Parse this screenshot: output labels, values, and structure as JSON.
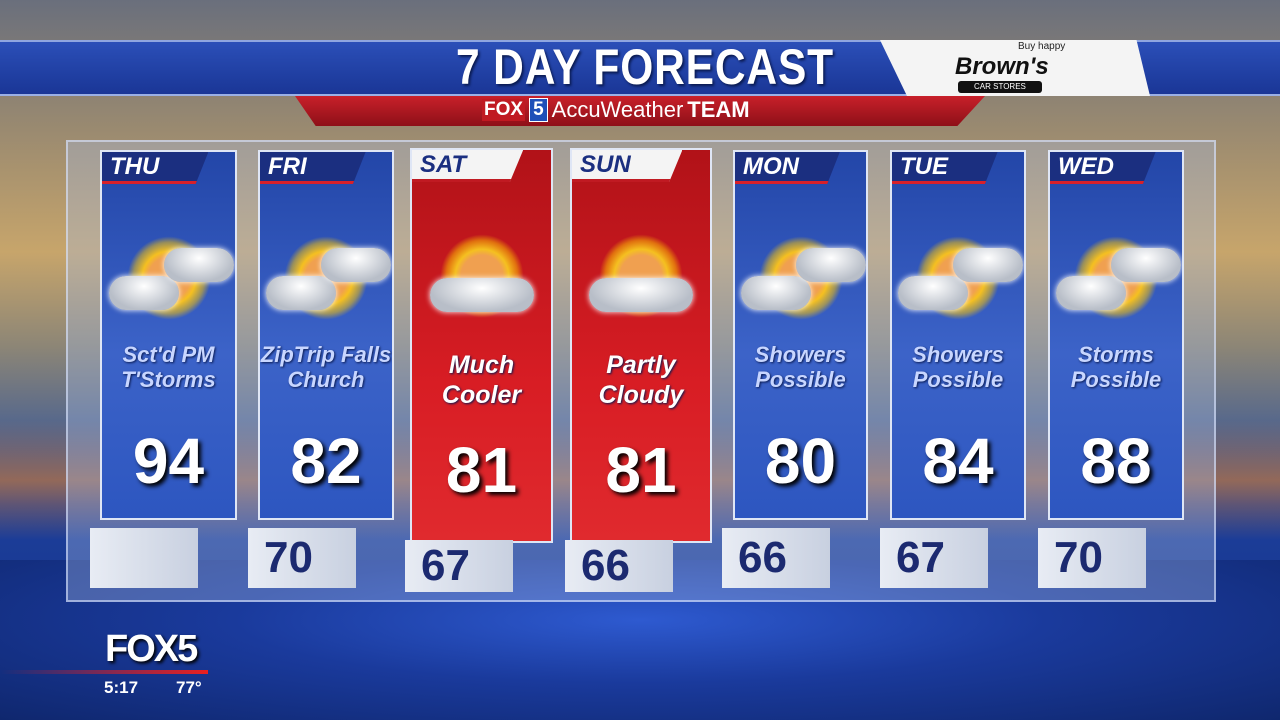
{
  "header": {
    "title": "7 DAY FORECAST",
    "brand_fox": "FOX",
    "brand_5": "5",
    "brand_accu": "AccuWeather",
    "brand_team": "TEAM"
  },
  "sponsor": {
    "tagline": "Buy happy",
    "logo": "Brown's",
    "sub": "CAR STORES"
  },
  "days": [
    {
      "day": "THU",
      "desc": "Sct'd PM T'Storms",
      "high": "94",
      "low": "",
      "icon": "sun-cloud-storm-icon",
      "highlight": false
    },
    {
      "day": "FRI",
      "desc": "ZipTrip Falls Church",
      "high": "82",
      "low": "70",
      "icon": "sun-cloud-showers-icon",
      "highlight": false
    },
    {
      "day": "SAT",
      "desc": "Much Cooler",
      "high": "81",
      "low": "67",
      "icon": "partly-cloudy-icon",
      "highlight": true
    },
    {
      "day": "SUN",
      "desc": "Partly Cloudy",
      "high": "81",
      "low": "66",
      "icon": "partly-cloudy-icon",
      "highlight": true
    },
    {
      "day": "MON",
      "desc": "Showers Possible",
      "high": "80",
      "low": "66",
      "icon": "sun-cloud-showers-icon",
      "highlight": false
    },
    {
      "day": "TUE",
      "desc": "Showers Possible",
      "high": "84",
      "low": "67",
      "icon": "sun-cloud-showers-icon",
      "highlight": false
    },
    {
      "day": "WED",
      "desc": "Storms Possible",
      "high": "88",
      "low": "70",
      "icon": "sun-cloud-storm-icon",
      "highlight": false
    }
  ],
  "bug": {
    "logo": "FOX5",
    "time": "5:17",
    "temp": "77°"
  },
  "colors": {
    "header_blue": "#2346a8",
    "highlight_red": "#d81d24",
    "low_text": "#1c2a70"
  }
}
